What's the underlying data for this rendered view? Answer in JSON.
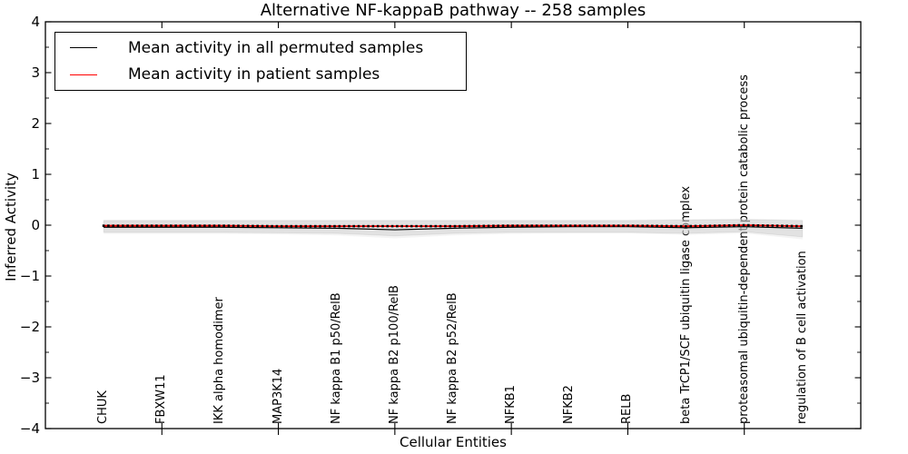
{
  "chart_data": {
    "type": "line",
    "title": "Alternative NF-kappaB pathway -- 258 samples",
    "xlabel": "Cellular Entities",
    "ylabel": "Inferred Activity",
    "ylim": [
      -4,
      4
    ],
    "ytick_values": [
      4,
      3,
      2,
      1,
      0,
      -1,
      -2,
      -3,
      -4
    ],
    "ytick_labels": [
      "4",
      "3",
      "2",
      "1",
      "0",
      "−1",
      "−2",
      "−3",
      "−4"
    ],
    "grid": false,
    "legend_position": "upper left",
    "categories": [
      "CHUK",
      "FBXW11",
      "IKK alpha homodimer",
      "MAP3K14",
      "NF kappa B1 p50/RelB",
      "NF kappa B2 p100/RelB",
      "NF kappa B2 p52/RelB",
      "NFKB1",
      "NFKB2",
      "RELB",
      "beta TrCP1/SCF ubiquitin ligase complex",
      "proteasomal ubiquitin-dependent protein catabolic process",
      "regulation of B cell activation"
    ],
    "series": [
      {
        "name": "Mean activity in all permuted samples",
        "color": "#000000",
        "marker": "none",
        "values": [
          -0.04,
          -0.04,
          -0.04,
          -0.05,
          -0.06,
          -0.09,
          -0.06,
          -0.04,
          -0.03,
          -0.03,
          -0.05,
          -0.03,
          -0.06
        ]
      },
      {
        "name": "Mean activity in patient samples",
        "color": "#ff0000",
        "marker": "small-black-square",
        "values": [
          -0.01,
          -0.01,
          -0.01,
          -0.02,
          -0.02,
          -0.02,
          -0.02,
          -0.01,
          -0.01,
          -0.01,
          -0.02,
          0.0,
          -0.02
        ]
      }
    ],
    "band": {
      "description": "shaded std band around permuted mean",
      "inner_color": "#cccccc",
      "outer_color": "#d9d9d9",
      "upper": [
        0.09,
        0.09,
        0.09,
        0.09,
        0.09,
        0.09,
        0.09,
        0.09,
        0.09,
        0.09,
        0.1,
        0.11,
        0.09
      ],
      "lower": [
        -0.14,
        -0.14,
        -0.14,
        -0.15,
        -0.16,
        -0.21,
        -0.16,
        -0.14,
        -0.14,
        -0.14,
        -0.16,
        -0.13,
        -0.23
      ],
      "outer_upper": [
        0.11,
        0.11,
        0.11,
        0.11,
        0.11,
        0.11,
        0.11,
        0.11,
        0.11,
        0.11,
        0.12,
        0.13,
        0.11
      ],
      "outer_lower": [
        -0.17,
        -0.17,
        -0.17,
        -0.18,
        -0.2,
        -0.26,
        -0.2,
        -0.17,
        -0.16,
        -0.16,
        -0.19,
        -0.16,
        -0.28
      ]
    }
  }
}
